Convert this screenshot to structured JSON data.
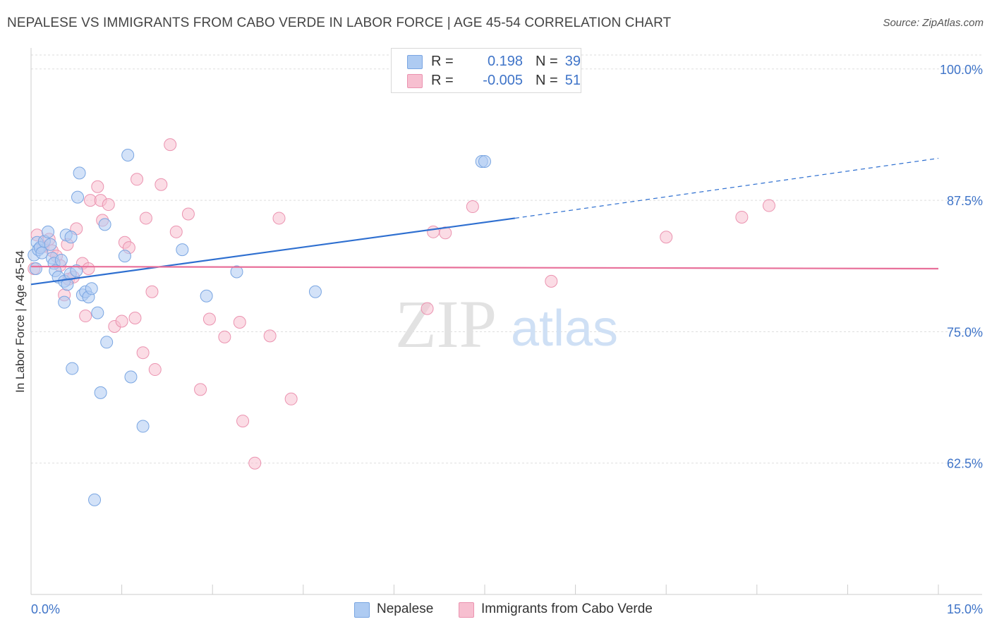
{
  "title": "NEPALESE VS IMMIGRANTS FROM CABO VERDE IN LABOR FORCE | AGE 45-54 CORRELATION CHART",
  "source": "Source: ZipAtlas.com",
  "watermark": {
    "zip": "ZIP",
    "atlas": "atlas"
  },
  "legend": {
    "r_label": "R =",
    "n_label": "N =",
    "rows": [
      {
        "r": "0.198",
        "n": "39"
      },
      {
        "r": "-0.005",
        "n": "51"
      }
    ]
  },
  "colors": {
    "blue_fill": "#aecbf2",
    "blue_stroke": "#7aa6e2",
    "blue_line": "#2e6fd0",
    "pink_fill": "#f7bfd0",
    "pink_stroke": "#eb93b0",
    "pink_line": "#e8709a",
    "tick_text": "#3f74c8",
    "grid": "#dddddd"
  },
  "chart_data": {
    "type": "scatter",
    "title": "NEPALESE VS IMMIGRANTS FROM CABO VERDE IN LABOR FORCE | AGE 45-54 CORRELATION CHART",
    "xlabel": "",
    "ylabel": "In Labor Force | Age 45-54",
    "x_tick_labels": [
      "0.0%",
      "15.0%"
    ],
    "y_tick_labels": [
      "100.0%",
      "87.5%",
      "75.0%",
      "62.5%"
    ],
    "y_ticks": [
      100.0,
      87.5,
      75.0,
      62.5
    ],
    "xlim": [
      0,
      15
    ],
    "ylim": [
      50,
      102
    ],
    "grid": true,
    "legend_position": "bottom",
    "series": [
      {
        "name": "Nepalese",
        "r": 0.198,
        "n": 39,
        "points": [
          [
            0.05,
            82.3
          ],
          [
            0.08,
            81.0
          ],
          [
            0.1,
            83.5
          ],
          [
            0.12,
            82.8
          ],
          [
            0.15,
            83.0
          ],
          [
            0.18,
            82.5
          ],
          [
            0.22,
            83.6
          ],
          [
            0.28,
            84.5
          ],
          [
            0.32,
            83.3
          ],
          [
            0.35,
            82.0
          ],
          [
            0.38,
            81.5
          ],
          [
            0.4,
            80.8
          ],
          [
            0.45,
            80.2
          ],
          [
            0.5,
            81.8
          ],
          [
            0.55,
            79.8
          ],
          [
            0.6,
            79.5
          ],
          [
            0.65,
            80.5
          ],
          [
            0.75,
            80.8
          ],
          [
            0.85,
            78.5
          ],
          [
            0.9,
            78.8
          ],
          [
            0.95,
            78.3
          ],
          [
            1.0,
            79.1
          ],
          [
            0.55,
            77.8
          ],
          [
            0.58,
            84.2
          ],
          [
            0.66,
            84.0
          ],
          [
            0.77,
            87.8
          ],
          [
            0.8,
            90.1
          ],
          [
            1.1,
            76.8
          ],
          [
            1.25,
            74.0
          ],
          [
            1.22,
            85.2
          ],
          [
            1.55,
            82.2
          ],
          [
            1.6,
            91.8
          ],
          [
            0.68,
            71.5
          ],
          [
            1.15,
            69.2
          ],
          [
            1.65,
            70.7
          ],
          [
            1.85,
            66.0
          ],
          [
            2.5,
            82.8
          ],
          [
            2.9,
            78.4
          ],
          [
            1.05,
            59.0
          ]
        ],
        "extra_points": [
          [
            3.4,
            80.7
          ],
          [
            4.7,
            78.8
          ],
          [
            7.45,
            91.2
          ],
          [
            7.5,
            91.2
          ]
        ],
        "trend": {
          "x0": 0,
          "y0": 79.5,
          "x1": 8.0,
          "y1": 85.8,
          "dashed_to_x": 15,
          "dashed_to_y": 91.5
        }
      },
      {
        "name": "Immigrants from Cabo Verde",
        "r": -0.005,
        "n": 51,
        "points": [
          [
            0.05,
            81.0
          ],
          [
            0.1,
            84.2
          ],
          [
            0.2,
            83.1
          ],
          [
            0.3,
            83.8
          ],
          [
            0.35,
            82.7
          ],
          [
            0.42,
            82.2
          ],
          [
            0.48,
            81.3
          ],
          [
            0.55,
            78.5
          ],
          [
            0.62,
            80.0
          ],
          [
            0.7,
            80.2
          ],
          [
            0.75,
            84.8
          ],
          [
            0.85,
            81.5
          ],
          [
            0.9,
            76.5
          ],
          [
            0.95,
            81.0
          ],
          [
            0.98,
            87.5
          ],
          [
            1.1,
            88.8
          ],
          [
            1.15,
            87.5
          ],
          [
            1.18,
            85.6
          ],
          [
            1.28,
            87.1
          ],
          [
            1.38,
            75.5
          ],
          [
            1.5,
            76.0
          ],
          [
            1.55,
            83.5
          ],
          [
            1.62,
            83.0
          ],
          [
            1.75,
            89.5
          ],
          [
            1.85,
            73.0
          ],
          [
            1.9,
            85.8
          ],
          [
            2.0,
            78.8
          ],
          [
            2.05,
            71.4
          ],
          [
            2.15,
            89.0
          ],
          [
            2.3,
            92.8
          ],
          [
            2.4,
            84.5
          ],
          [
            2.6,
            86.2
          ],
          [
            2.8,
            69.5
          ],
          [
            2.95,
            76.2
          ],
          [
            3.2,
            74.5
          ],
          [
            3.45,
            75.9
          ],
          [
            3.5,
            66.5
          ],
          [
            3.7,
            62.5
          ],
          [
            3.95,
            74.6
          ],
          [
            4.1,
            85.8
          ],
          [
            4.3,
            68.6
          ],
          [
            6.55,
            77.2
          ],
          [
            6.65,
            84.5
          ],
          [
            6.85,
            84.4
          ],
          [
            7.3,
            86.9
          ],
          [
            8.6,
            79.8
          ],
          [
            10.5,
            84.0
          ],
          [
            11.75,
            85.9
          ],
          [
            12.2,
            87.0
          ],
          [
            1.72,
            76.3
          ],
          [
            0.6,
            83.3
          ]
        ],
        "trend": {
          "x0": 0,
          "y0": 81.2,
          "x1": 15,
          "y1": 81.0
        }
      }
    ]
  }
}
